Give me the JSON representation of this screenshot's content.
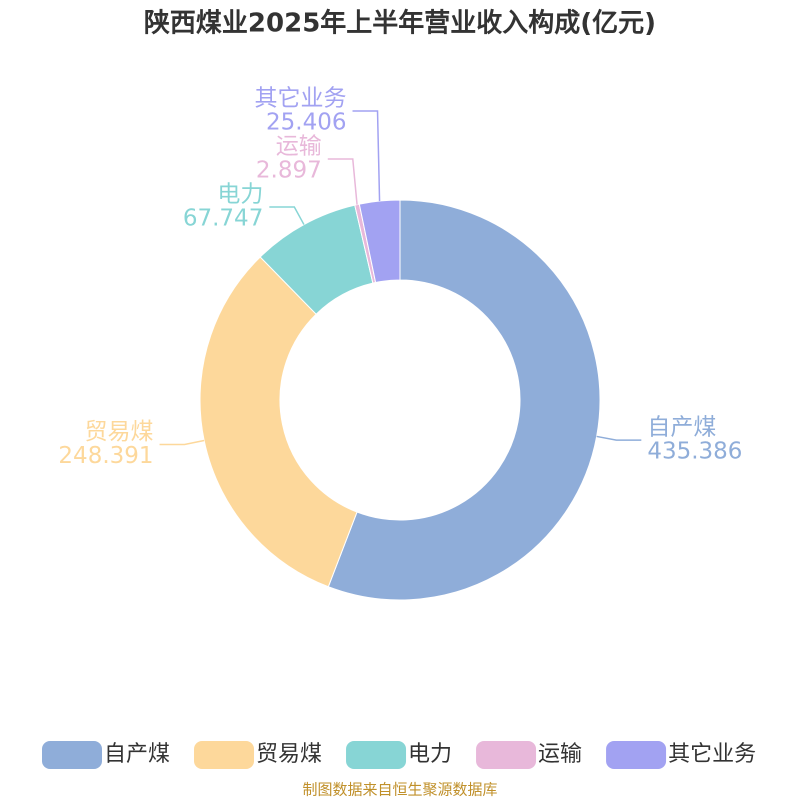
{
  "chart_data": {
    "type": "donut",
    "title": "陕西煤业2025年上半年营业收入构成(亿元)",
    "categories": [
      "自产煤",
      "贸易煤",
      "电力",
      "运输",
      "其它业务"
    ],
    "values": [
      435.386,
      248.391,
      67.747,
      2.897,
      25.406
    ],
    "colors": [
      "#8fadd9",
      "#fdd89b",
      "#87d5d5",
      "#e8b8da",
      "#a2a2f2"
    ],
    "legend": "bottom",
    "source": "制图数据来自恒生聚源数据库"
  }
}
